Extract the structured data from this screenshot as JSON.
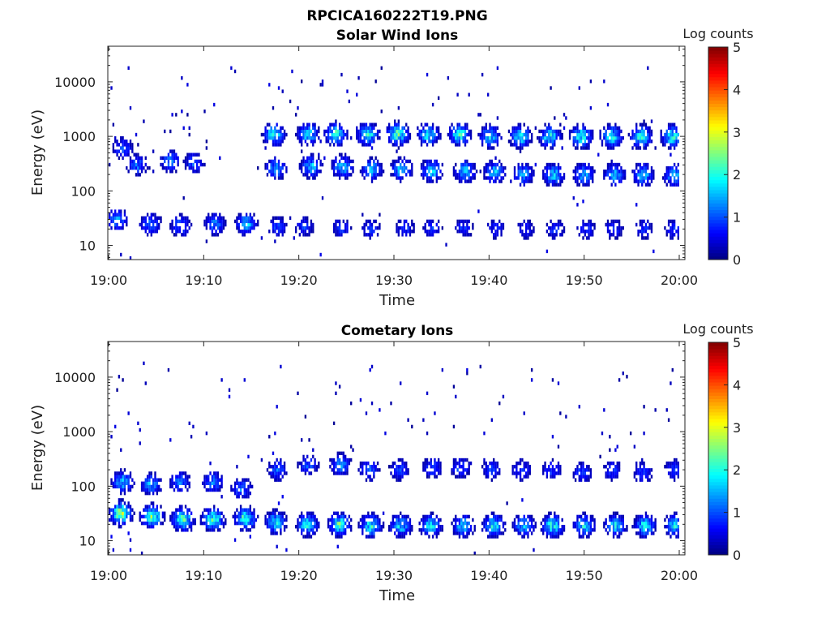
{
  "figure": {
    "filename": "RPCICA160222T19.PNG"
  },
  "colorbar": {
    "label": "Log counts",
    "range": [
      0,
      5
    ],
    "ticks": [
      "0",
      "1",
      "2",
      "3",
      "4",
      "5"
    ],
    "colormap": "jet"
  },
  "chart_data": [
    {
      "type": "heatmap",
      "title": "Solar Wind Ions",
      "xlabel": "Time",
      "ylabel": "Energy (eV)",
      "x_ticks": [
        "19:00",
        "19:10",
        "19:20",
        "19:30",
        "19:40",
        "19:50",
        "20:00"
      ],
      "x_range_minutes": [
        0,
        60.5
      ],
      "y_ticks": [
        "10",
        "100",
        "1000",
        "10000"
      ],
      "y_scale": "log",
      "y_range": [
        5.5,
        45000
      ],
      "colorbar_label": "Log counts",
      "blobs": [
        {
          "t": 0.9,
          "e": 30,
          "v": 1.5
        },
        {
          "t": 4.4,
          "e": 25,
          "v": 1.4
        },
        {
          "t": 7.6,
          "e": 23,
          "v": 1.3
        },
        {
          "t": 11.2,
          "e": 25,
          "v": 1.4
        },
        {
          "t": 14.5,
          "e": 25,
          "v": 1.8
        },
        {
          "t": 17.8,
          "e": 22,
          "v": 1.0
        },
        {
          "t": 20.6,
          "e": 22,
          "v": 0.9
        },
        {
          "t": 24.5,
          "e": 21,
          "v": 0.9
        },
        {
          "t": 27.6,
          "e": 20,
          "v": 0.9
        },
        {
          "t": 31.2,
          "e": 21,
          "v": 0.9
        },
        {
          "t": 34.1,
          "e": 21,
          "v": 0.9
        },
        {
          "t": 37.4,
          "e": 21,
          "v": 0.9
        },
        {
          "t": 40.7,
          "e": 20,
          "v": 0.8
        },
        {
          "t": 43.8,
          "e": 20,
          "v": 0.8
        },
        {
          "t": 47.0,
          "e": 20,
          "v": 0.9
        },
        {
          "t": 50.2,
          "e": 20,
          "v": 0.9
        },
        {
          "t": 53.1,
          "e": 20,
          "v": 0.9
        },
        {
          "t": 56.3,
          "e": 20,
          "v": 0.9
        },
        {
          "t": 59.5,
          "e": 20,
          "v": 0.9
        },
        {
          "t": 17.6,
          "e": 260,
          "v": 1.6
        },
        {
          "t": 21.3,
          "e": 280,
          "v": 1.8
        },
        {
          "t": 24.6,
          "e": 280,
          "v": 1.9
        },
        {
          "t": 27.7,
          "e": 250,
          "v": 1.7
        },
        {
          "t": 30.8,
          "e": 250,
          "v": 1.8
        },
        {
          "t": 34.0,
          "e": 240,
          "v": 2.0
        },
        {
          "t": 37.5,
          "e": 230,
          "v": 1.8
        },
        {
          "t": 40.6,
          "e": 220,
          "v": 1.8
        },
        {
          "t": 43.6,
          "e": 200,
          "v": 1.6
        },
        {
          "t": 46.8,
          "e": 200,
          "v": 1.8
        },
        {
          "t": 50.0,
          "e": 200,
          "v": 1.8
        },
        {
          "t": 53.2,
          "e": 200,
          "v": 1.7
        },
        {
          "t": 56.2,
          "e": 200,
          "v": 1.8
        },
        {
          "t": 59.5,
          "e": 190,
          "v": 1.8
        },
        {
          "t": 17.4,
          "e": 1100,
          "v": 2.2
        },
        {
          "t": 21.0,
          "e": 1100,
          "v": 2.1
        },
        {
          "t": 23.9,
          "e": 1100,
          "v": 2.3
        },
        {
          "t": 27.3,
          "e": 1100,
          "v": 2.2
        },
        {
          "t": 30.4,
          "e": 1100,
          "v": 2.6
        },
        {
          "t": 33.6,
          "e": 1100,
          "v": 2.1
        },
        {
          "t": 36.9,
          "e": 1100,
          "v": 2.3
        },
        {
          "t": 40.1,
          "e": 1000,
          "v": 2.0
        },
        {
          "t": 43.3,
          "e": 1000,
          "v": 2.1
        },
        {
          "t": 46.4,
          "e": 1000,
          "v": 2.2
        },
        {
          "t": 49.7,
          "e": 1000,
          "v": 2.3
        },
        {
          "t": 52.9,
          "e": 1000,
          "v": 2.2
        },
        {
          "t": 56.0,
          "e": 1000,
          "v": 2.2
        },
        {
          "t": 59.3,
          "e": 1000,
          "v": 2.2
        },
        {
          "t": 1.5,
          "e": 600,
          "v": 1.2
        },
        {
          "t": 3.0,
          "e": 300,
          "v": 1.3
        },
        {
          "t": 6.5,
          "e": 350,
          "v": 1.4
        },
        {
          "t": 9.0,
          "e": 330,
          "v": 1.2
        }
      ],
      "density": 0.55
    },
    {
      "type": "heatmap",
      "title": "Cometary Ions",
      "xlabel": "Time",
      "ylabel": "Energy (eV)",
      "x_ticks": [
        "19:00",
        "19:10",
        "19:20",
        "19:30",
        "19:40",
        "19:50",
        "20:00"
      ],
      "x_range_minutes": [
        0,
        60.5
      ],
      "y_ticks": [
        "10",
        "100",
        "1000",
        "10000"
      ],
      "y_scale": "log",
      "y_range": [
        5.5,
        45000
      ],
      "colorbar_label": "Log counts",
      "blobs": [
        {
          "t": 1.3,
          "e": 32,
          "v": 3.0
        },
        {
          "t": 4.6,
          "e": 28,
          "v": 2.6
        },
        {
          "t": 7.8,
          "e": 25,
          "v": 2.6
        },
        {
          "t": 11.0,
          "e": 25,
          "v": 2.6
        },
        {
          "t": 14.4,
          "e": 26,
          "v": 2.4
        },
        {
          "t": 17.6,
          "e": 22,
          "v": 2.0
        },
        {
          "t": 20.9,
          "e": 20,
          "v": 2.2
        },
        {
          "t": 24.3,
          "e": 20,
          "v": 2.5
        },
        {
          "t": 27.6,
          "e": 19,
          "v": 2.2
        },
        {
          "t": 30.7,
          "e": 19,
          "v": 1.9
        },
        {
          "t": 33.9,
          "e": 19,
          "v": 2.0
        },
        {
          "t": 37.3,
          "e": 19,
          "v": 1.9
        },
        {
          "t": 40.5,
          "e": 19,
          "v": 2.1
        },
        {
          "t": 43.7,
          "e": 19,
          "v": 1.8
        },
        {
          "t": 46.7,
          "e": 19,
          "v": 2.3
        },
        {
          "t": 50.0,
          "e": 19,
          "v": 2.0
        },
        {
          "t": 53.3,
          "e": 19,
          "v": 2.0
        },
        {
          "t": 56.4,
          "e": 19,
          "v": 2.1
        },
        {
          "t": 59.6,
          "e": 19,
          "v": 2.0
        },
        {
          "t": 1.5,
          "e": 120,
          "v": 1.8
        },
        {
          "t": 4.5,
          "e": 110,
          "v": 1.6
        },
        {
          "t": 7.5,
          "e": 120,
          "v": 1.3
        },
        {
          "t": 11.0,
          "e": 120,
          "v": 1.5
        },
        {
          "t": 14.0,
          "e": 90,
          "v": 1.3
        },
        {
          "t": 17.8,
          "e": 200,
          "v": 1.2
        },
        {
          "t": 21.0,
          "e": 250,
          "v": 1.2
        },
        {
          "t": 24.4,
          "e": 250,
          "v": 1.5
        },
        {
          "t": 27.4,
          "e": 200,
          "v": 1.2
        },
        {
          "t": 30.6,
          "e": 200,
          "v": 1.1
        },
        {
          "t": 34.0,
          "e": 220,
          "v": 1.1
        },
        {
          "t": 37.0,
          "e": 220,
          "v": 1.1
        },
        {
          "t": 40.3,
          "e": 200,
          "v": 1.0
        },
        {
          "t": 43.4,
          "e": 200,
          "v": 1.0
        },
        {
          "t": 46.6,
          "e": 200,
          "v": 1.0
        },
        {
          "t": 49.8,
          "e": 180,
          "v": 1.0
        },
        {
          "t": 53.0,
          "e": 200,
          "v": 1.0
        },
        {
          "t": 56.2,
          "e": 180,
          "v": 1.0
        },
        {
          "t": 59.5,
          "e": 200,
          "v": 1.0
        }
      ],
      "density": 0.6
    }
  ]
}
